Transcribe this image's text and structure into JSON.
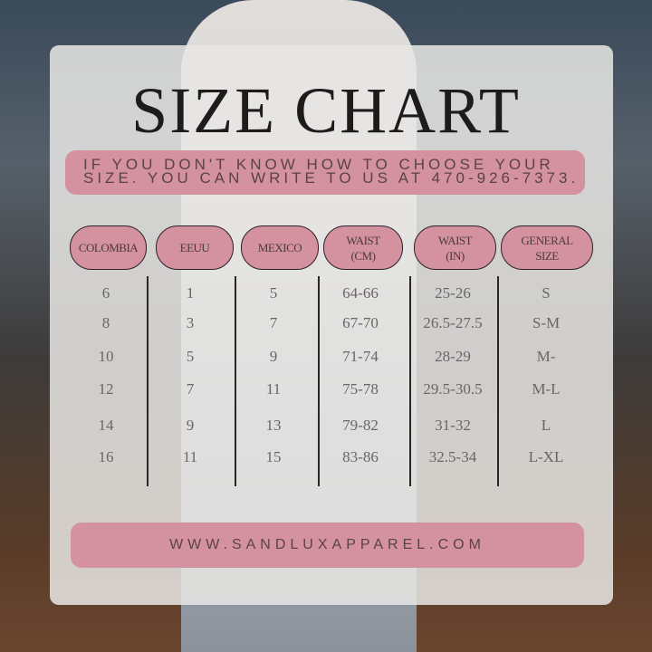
{
  "title": "SIZE CHART",
  "banner": {
    "line1": "IF YOU DON'T KNOW HOW TO CHOOSE YOUR",
    "line2": "SIZE. YOU CAN WRITE TO US AT 470-926-7373."
  },
  "headers": [
    {
      "line1": "COLOMBIA",
      "line2": ""
    },
    {
      "line1": "EEUU",
      "line2": ""
    },
    {
      "line1": "MEXICO",
      "line2": ""
    },
    {
      "line1": "WAIST",
      "line2": "(CM)"
    },
    {
      "line1": "WAIST",
      "line2": "(IN)"
    },
    {
      "line1": "GENERAL",
      "line2": "SIZE"
    }
  ],
  "rows": [
    [
      "6",
      "1",
      "5",
      "64-66",
      "25-26",
      "S"
    ],
    [
      "8",
      "3",
      "7",
      "67-70",
      "26.5-27.5",
      "S-M"
    ],
    [
      "10",
      "5",
      "9",
      "71-74",
      "28-29",
      "M-"
    ],
    [
      "12",
      "7",
      "11",
      "75-78",
      "29.5-30.5",
      "M-L"
    ],
    [
      "14",
      "9",
      "13",
      "79-82",
      "31-32",
      "L"
    ],
    [
      "16",
      "11",
      "15",
      "83-86",
      "32.5-34",
      "L-XL"
    ]
  ],
  "website": "WWW.SANDLUXAPPAREL.COM",
  "colors": {
    "pink": "#d4919f",
    "panel": "#e8e6e4"
  }
}
